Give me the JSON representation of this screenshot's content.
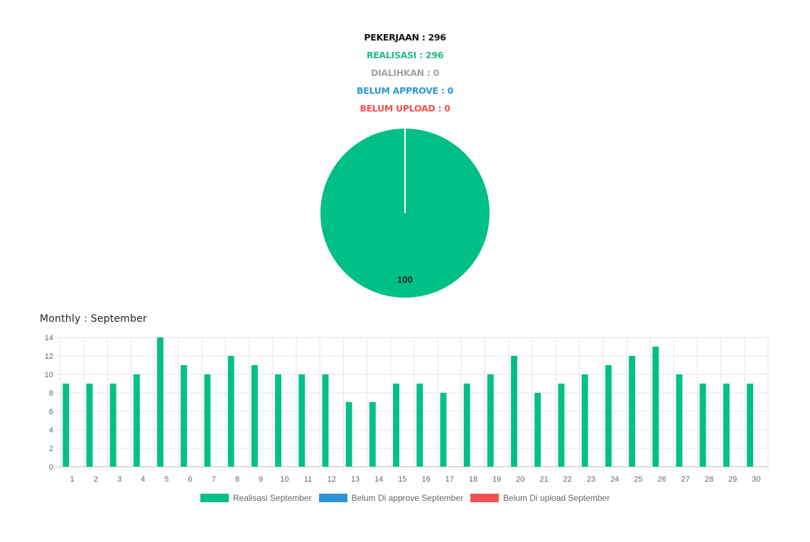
{
  "stats": {
    "pekerjaan": "PEKERJAAN : 296",
    "realisasi": "REALISASI : 296",
    "dialihkan": "DIALIHKAN : 0",
    "belum_approve": "BELUM APPROVE : 0",
    "belum_upload": "BELUM UPLOAD : 0"
  },
  "colors": {
    "realisasi": "#1dbb86",
    "belum_approve": "#2e95d8",
    "belum_upload": "#f0514f",
    "dialihkan": "#a3a3a3"
  },
  "chart_data": [
    {
      "type": "pie",
      "values": [
        100,
        0,
        0
      ],
      "colors": [
        "#00bf87",
        "#2e95d8",
        "#f0514f"
      ],
      "data_label": "100"
    },
    {
      "type": "bar",
      "title": "Monthly : September",
      "categories": [
        "1",
        "2",
        "3",
        "4",
        "5",
        "6",
        "7",
        "8",
        "9",
        "10",
        "11",
        "12",
        "13",
        "14",
        "15",
        "16",
        "17",
        "18",
        "19",
        "20",
        "21",
        "22",
        "23",
        "24",
        "25",
        "26",
        "27",
        "28",
        "29",
        "30"
      ],
      "series": [
        {
          "name": "Realisasi September",
          "color": "#00bf87",
          "values": [
            9,
            9,
            9,
            10,
            14,
            11,
            10,
            12,
            11,
            10,
            10,
            10,
            7,
            7,
            9,
            9,
            8,
            9,
            10,
            12,
            8,
            9,
            10,
            11,
            12,
            13,
            10,
            9,
            9,
            9
          ]
        },
        {
          "name": "Belum Di approve September",
          "color": "#2e95d8",
          "values": [
            0,
            0,
            0,
            0,
            0,
            0,
            0,
            0,
            0,
            0,
            0,
            0,
            0,
            0,
            0,
            0,
            0,
            0,
            0,
            0,
            0,
            0,
            0,
            0,
            0,
            0,
            0,
            0,
            0,
            0
          ]
        },
        {
          "name": "Belum Di upload September",
          "color": "#f0514f",
          "values": [
            0,
            0,
            0,
            0,
            0,
            0,
            0,
            0,
            0,
            0,
            0,
            0,
            0,
            0,
            0,
            0,
            0,
            0,
            0,
            0,
            0,
            0,
            0,
            0,
            0,
            0,
            0,
            0,
            0,
            0
          ]
        }
      ],
      "yticks": [
        0,
        2,
        4,
        6,
        8,
        10,
        12,
        14
      ],
      "ylim": [
        0,
        14
      ],
      "grid": true,
      "legend": "bottom"
    }
  ]
}
